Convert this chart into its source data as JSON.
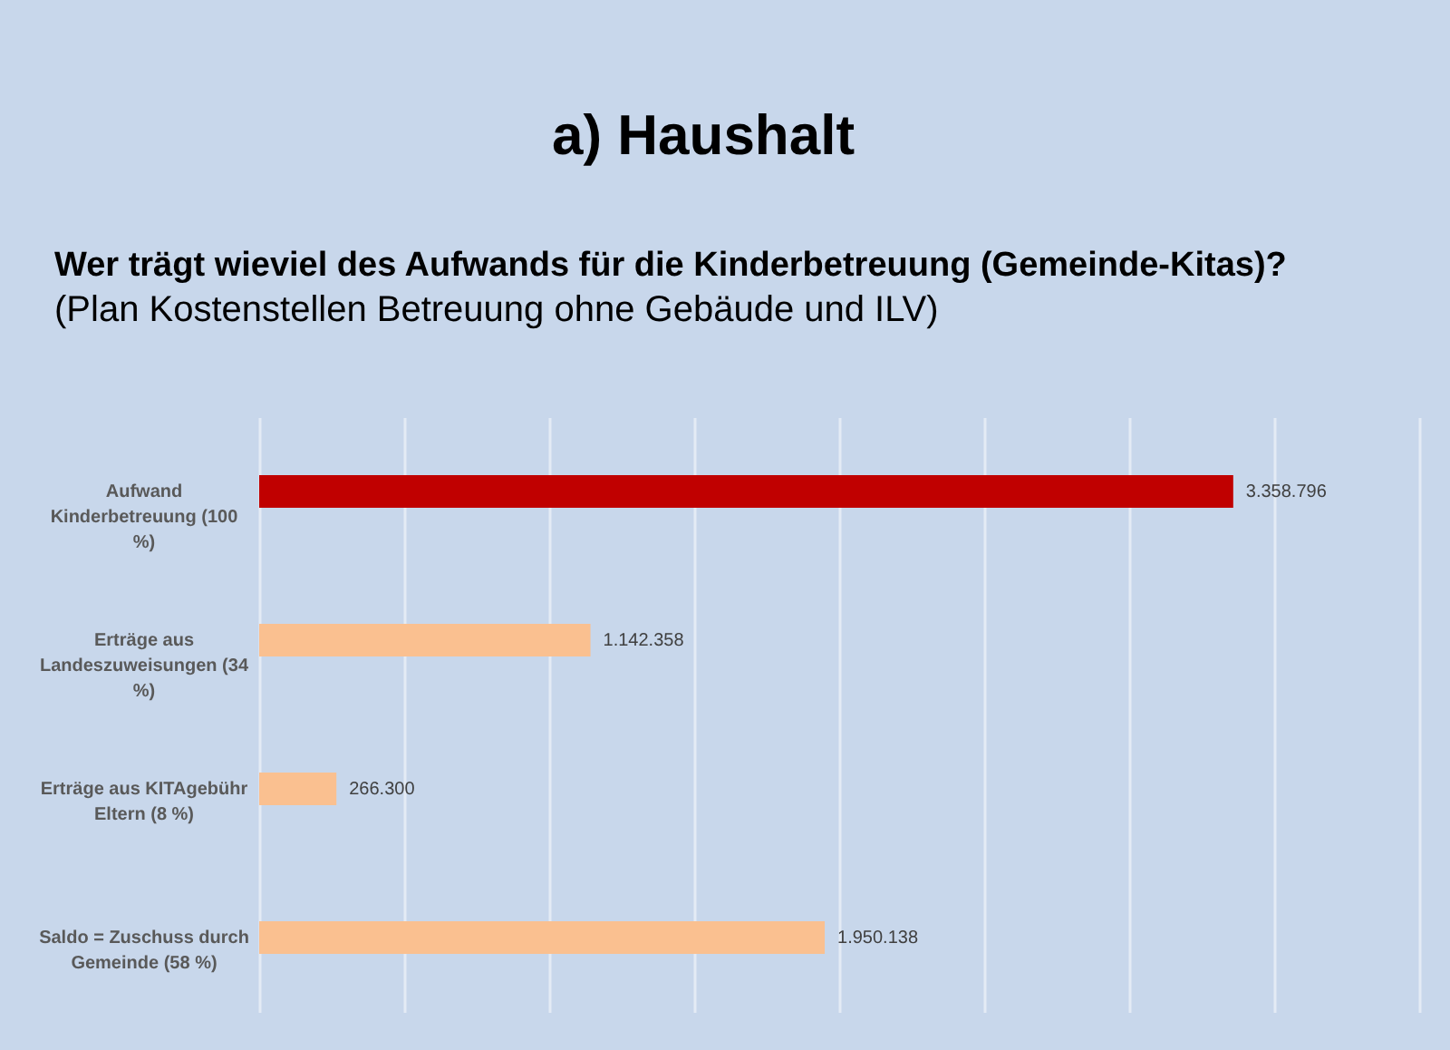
{
  "chart_data": {
    "type": "bar",
    "title": "a) Haushalt",
    "subtitle": "Wer trägt wieviel des Aufwands für die Kinderbetreuung (Gemeinde-Kitas)?",
    "annotations": [
      "(Plan Kostenstellen Betreuung ohne Gebäude und ILV)"
    ],
    "orientation": "horizontal",
    "categories": [
      "Aufwand Kinderbetreuung (100 %)",
      "Erträge aus Landeszuweisungen (34 %)",
      "Erträge aus KITAgebühr Eltern (8 %)",
      "Saldo = Zuschuss durch Gemeinde (58 %)"
    ],
    "values": [
      3358796,
      1142358,
      266300,
      1950138
    ],
    "value_labels": [
      "3.358.796",
      "1.142.358",
      "266.300",
      "1.950.138"
    ],
    "colors": [
      "#c00000",
      "#fac090",
      "#fac090",
      "#fac090"
    ],
    "grid": "x",
    "tick_labels": "y"
  }
}
